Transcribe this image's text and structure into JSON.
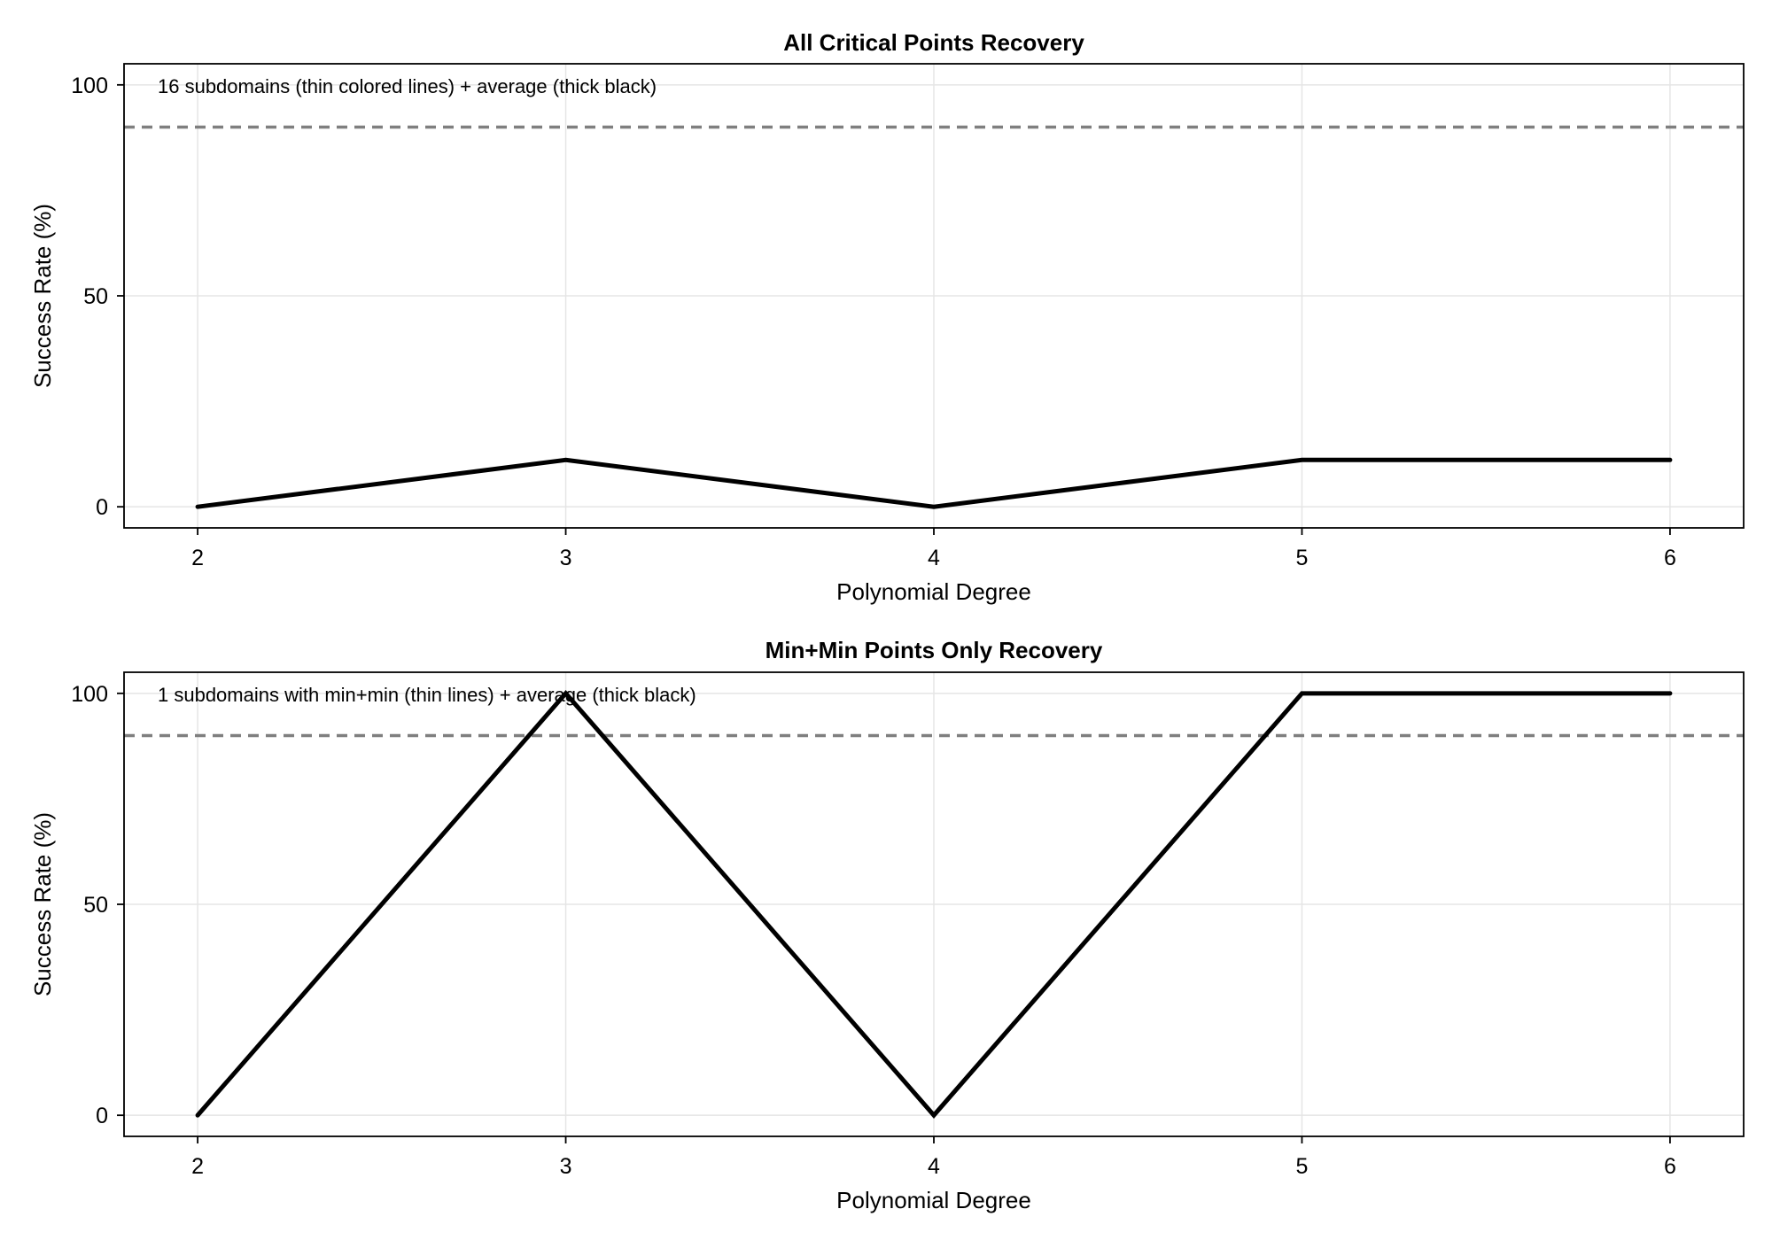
{
  "chart_data": [
    {
      "type": "line",
      "title": "All Critical Points Recovery",
      "xlabel": "Polynomial Degree",
      "ylabel": "Success Rate (%)",
      "annotation": "16 subdomains (thin colored lines) + average (thick black)",
      "xlim": [
        1.8,
        6.2
      ],
      "ylim": [
        -5,
        105
      ],
      "xticks": [
        2,
        3,
        4,
        5,
        6
      ],
      "yticks": [
        0,
        50,
        100
      ],
      "grid": true,
      "threshold": 90,
      "series": [
        {
          "x": [
            2,
            3,
            4,
            5,
            6
          ],
          "values": [
            0,
            11.1,
            0,
            11.1,
            11.1
          ],
          "color": "#000000"
        }
      ],
      "threshold_color": "#7f7f7f",
      "grid_color": "#e5e5e5"
    },
    {
      "type": "line",
      "title": "Min+Min Points Only Recovery",
      "xlabel": "Polynomial Degree",
      "ylabel": "Success Rate (%)",
      "annotation": "1 subdomains with min+min (thin lines) + average (thick black)",
      "xlim": [
        1.8,
        6.2
      ],
      "ylim": [
        -5,
        105
      ],
      "xticks": [
        2,
        3,
        4,
        5,
        6
      ],
      "yticks": [
        0,
        50,
        100
      ],
      "grid": true,
      "threshold": 90,
      "series": [
        {
          "x": [
            2,
            3,
            4,
            5,
            6
          ],
          "values": [
            0,
            100,
            0,
            100,
            100
          ],
          "color": "#000000"
        }
      ],
      "threshold_color": "#7f7f7f",
      "grid_color": "#e5e5e5"
    }
  ]
}
